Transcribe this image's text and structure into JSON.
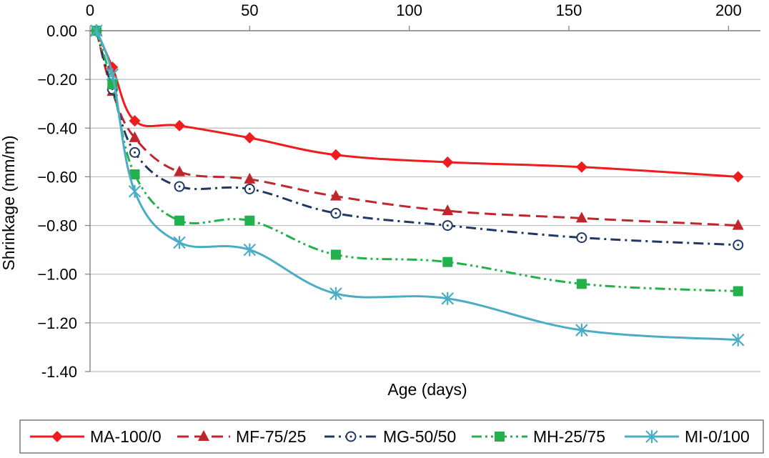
{
  "chart_data": {
    "type": "line",
    "xlabel": "Age (days)",
    "ylabel": "Shrinkage (mm/m)",
    "xlim": [
      0,
      210
    ],
    "ylim": [
      -1.4,
      0.0
    ],
    "x_ticks": [
      "0",
      "50",
      "100",
      "150",
      "200"
    ],
    "x_tick_values": [
      0,
      50,
      100,
      150,
      200
    ],
    "y_ticks": [
      "0.00",
      "−0.20",
      "−0.40",
      "−0.60",
      "−0.80",
      "−1.00",
      "−1.20",
      "-1.40"
    ],
    "y_tick_values": [
      0,
      -0.2,
      -0.4,
      -0.6,
      -0.8,
      -1.0,
      -1.2,
      -1.4
    ],
    "x_axis_position": "top",
    "grid": "horizontal",
    "legend_position": "bottom",
    "series": [
      {
        "name": "MA-100/0",
        "color": "#ee1c1c",
        "marker": "diamond",
        "dash": "solid",
        "x": [
          2,
          7,
          14,
          28,
          50,
          77,
          112,
          154,
          203
        ],
        "y": [
          0.0,
          -0.15,
          -0.37,
          -0.39,
          -0.44,
          -0.51,
          -0.54,
          -0.56,
          -0.6
        ]
      },
      {
        "name": "MF-75/25",
        "color": "#c0272d",
        "marker": "triangle",
        "dash": "dash",
        "x": [
          2,
          7,
          14,
          28,
          50,
          77,
          112,
          154,
          203
        ],
        "y": [
          0.0,
          -0.25,
          -0.44,
          -0.58,
          -0.61,
          -0.68,
          -0.74,
          -0.77,
          -0.8
        ]
      },
      {
        "name": "MG-50/50",
        "color": "#1f3864",
        "marker": "circle",
        "dash": "dashdot",
        "x": [
          2,
          7,
          14,
          28,
          50,
          77,
          112,
          154,
          203
        ],
        "y": [
          0.0,
          -0.24,
          -0.5,
          -0.64,
          -0.65,
          -0.75,
          -0.8,
          -0.85,
          -0.88
        ]
      },
      {
        "name": "MH-25/75",
        "color": "#22b14c",
        "marker": "square",
        "dash": "dashdotdot",
        "x": [
          2,
          7,
          14,
          28,
          50,
          77,
          112,
          154,
          203
        ],
        "y": [
          0.0,
          -0.22,
          -0.59,
          -0.78,
          -0.78,
          -0.92,
          -0.95,
          -1.04,
          -1.07
        ]
      },
      {
        "name": "MI-0/100",
        "color": "#4bacc6",
        "marker": "asterisk",
        "dash": "solid",
        "x": [
          2,
          7,
          14,
          28,
          50,
          77,
          112,
          154,
          203
        ],
        "y": [
          0.0,
          -0.18,
          -0.66,
          -0.87,
          -0.9,
          -1.08,
          -1.1,
          -1.23,
          -1.27
        ]
      }
    ]
  }
}
